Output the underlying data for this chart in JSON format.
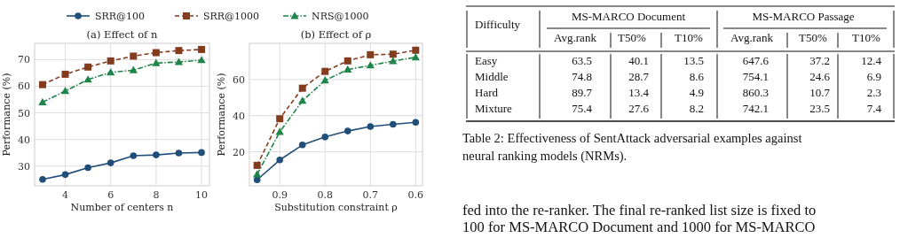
{
  "chart_data": [
    {
      "type": "line",
      "title": "(a) Effect of n",
      "xlabel": "Number of centers n",
      "ylabel": "Performance (%)",
      "x": [
        3,
        4,
        5,
        6,
        7,
        8,
        9,
        10
      ],
      "xlim": [
        2.65,
        10.35
      ],
      "xticks": [
        4,
        6,
        8,
        10
      ],
      "ylim": [
        22.6,
        76.1
      ],
      "yticks": [
        30,
        40,
        50,
        60,
        70
      ],
      "grid": true,
      "legend": "top",
      "series": [
        {
          "name": "SRR@100",
          "color": "#1f4e79",
          "marker": "circle",
          "line_style": "solid",
          "values": [
            25,
            26.8,
            29.4,
            31.2,
            33.9,
            34.2,
            34.9,
            35.1
          ]
        },
        {
          "name": "SRR@1000",
          "color": "#843c1f",
          "marker": "square",
          "line_style": "dashed",
          "values": [
            60.6,
            64.5,
            67.2,
            69.5,
            71.3,
            72.6,
            73.4,
            73.8
          ]
        },
        {
          "name": "NRS@1000",
          "color": "#1e8449",
          "marker": "triangle",
          "line_style": "dashdot",
          "values": [
            54,
            58.2,
            62.5,
            65.2,
            66,
            68.7,
            69.1,
            69.8
          ]
        }
      ]
    },
    {
      "type": "line",
      "title": "(b) Effect of ρ",
      "xlabel": "Substitution constraint ρ",
      "ylabel": "Performance (%)",
      "x": [
        0.95,
        0.9,
        0.85,
        0.8,
        0.75,
        0.7,
        0.65,
        0.6
      ],
      "xlim": [
        0.967,
        0.585
      ],
      "xticks": [
        0.9,
        0.8,
        0.7,
        0.6
      ],
      "ylim": [
        1.2,
        80
      ],
      "yticks": [
        20,
        40,
        60
      ],
      "grid": true,
      "series": [
        {
          "color": "#1f4e79",
          "marker": "circle",
          "line_style": "solid",
          "values": [
            4.5,
            15.5,
            23.8,
            28.2,
            31.5,
            34,
            35.2,
            36.3
          ]
        },
        {
          "color": "#843c1f",
          "marker": "square",
          "line_style": "dashed",
          "values": [
            12.5,
            38.3,
            55.2,
            64.5,
            70.3,
            73.7,
            74,
            76.2
          ]
        },
        {
          "color": "#1e8449",
          "marker": "triangle",
          "line_style": "dashdot",
          "values": [
            7.5,
            31,
            48.2,
            59.5,
            65.5,
            67.8,
            70.2,
            72.3
          ]
        }
      ]
    },
    {
      "type": "other",
      "annotations": [
        "Difficulty",
        "MS-MARCO Document",
        "MS-MARCO Passage",
        "Avg.rank",
        "T50%",
        "T10%",
        "Avg.rank",
        "T50%",
        "T10%",
        "Easy",
        "63.5",
        "40.1",
        "13.5",
        "647.6",
        "37.2",
        "12.4",
        "Middle",
        "74.8",
        "28.7",
        "8.6",
        "754.1",
        "24.6",
        "6.9",
        "Hard",
        "89.7",
        "13.4",
        "4.9",
        "860.3",
        "10.7",
        "2.3",
        "Mixture",
        "75.4",
        "27.6",
        "8.2",
        "742.1",
        "23.5",
        "7.4",
        "Table 2: Effectiveness of SentAttack adversarial examples against",
        "neural ranking models (NRMs).",
        "fed into the re-ranker. The final re-ranked list size is fixed to",
        "100 for MS-MARCO Document and 1000 for MS-MARCO"
      ]
    }
  ]
}
